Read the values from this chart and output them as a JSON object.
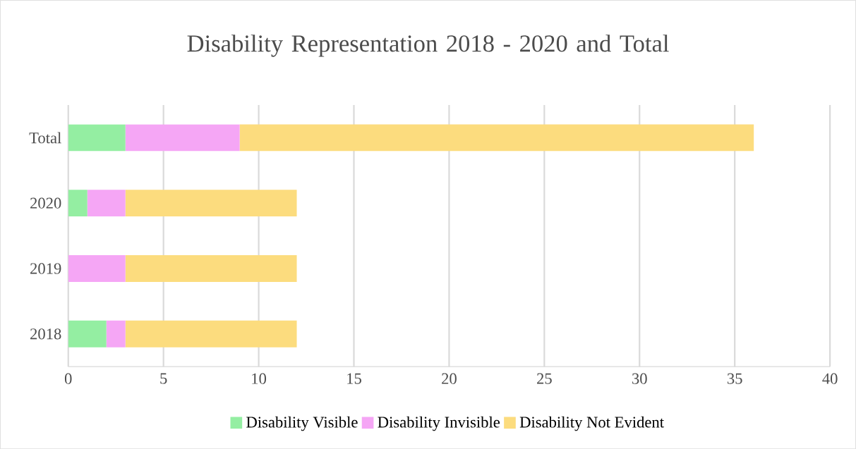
{
  "chart_data": {
    "type": "bar",
    "orientation": "horizontal",
    "stacked": true,
    "title": "Disability Representation 2018 - 2020 and Total",
    "categories": [
      "Total",
      "2020",
      "2019",
      "2018"
    ],
    "series": [
      {
        "name": "Disability Visible",
        "color": "#94eea2",
        "values": [
          3,
          1,
          0,
          2
        ]
      },
      {
        "name": "Disability Invisible",
        "color": "#f5a6f5",
        "values": [
          6,
          2,
          3,
          1
        ]
      },
      {
        "name": "Disability Not Evident",
        "color": "#fcdc7e",
        "values": [
          27,
          9,
          9,
          9
        ]
      }
    ],
    "xlim": [
      0,
      40
    ],
    "xticks": [
      0,
      5,
      10,
      15,
      20,
      25,
      30,
      35,
      40
    ],
    "grid": "x",
    "legend": "bottom"
  }
}
